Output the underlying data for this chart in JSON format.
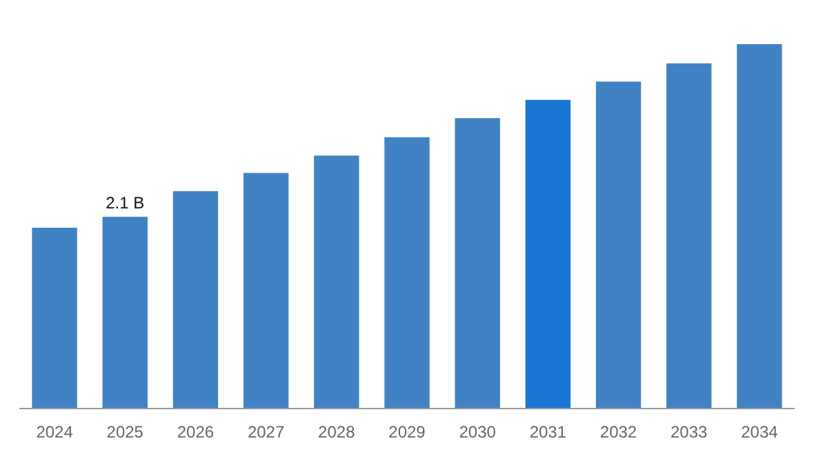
{
  "chart_data": {
    "type": "bar",
    "categories": [
      "2024",
      "2025",
      "2026",
      "2027",
      "2028",
      "2029",
      "2030",
      "2031",
      "2032",
      "2033",
      "2034"
    ],
    "values": [
      1.98,
      2.1,
      2.38,
      2.58,
      2.77,
      2.97,
      3.18,
      3.38,
      3.58,
      3.78,
      3.99
    ],
    "colors": [
      "#4182c5",
      "#4182c5",
      "#4182c5",
      "#4182c5",
      "#4182c5",
      "#4182c5",
      "#4182c5",
      "#1976d4",
      "#4182c5",
      "#4182c5",
      "#4182c5"
    ],
    "value_labels": [
      null,
      "2.1 B",
      null,
      null,
      null,
      null,
      null,
      null,
      null,
      null,
      null
    ]
  }
}
